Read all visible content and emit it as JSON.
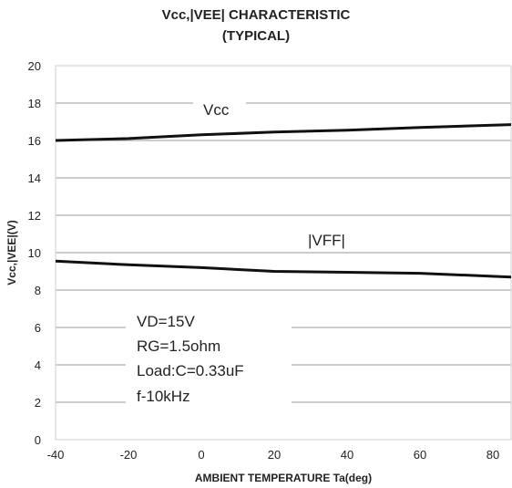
{
  "chart_data": {
    "type": "line",
    "title_line1": "Vcc,|VEE| CHARACTERISTIC",
    "title_line2": "(TYPICAL)",
    "xlabel": "AMBIENT TEMPERATURE Ta(deg)",
    "ylabel": "Vcc,|VEE|(V)",
    "xlim": [
      -40,
      85
    ],
    "ylim": [
      0,
      20
    ],
    "x_ticks": [
      -40,
      -20,
      0,
      20,
      40,
      60,
      80
    ],
    "y_ticks": [
      0,
      2,
      4,
      6,
      8,
      10,
      12,
      14,
      16,
      18,
      20
    ],
    "grid": "horizontal",
    "series": [
      {
        "name": "Vcc",
        "x": [
          -40,
          -20,
          0,
          20,
          40,
          60,
          85
        ],
        "y": [
          16.0,
          16.1,
          16.3,
          16.45,
          16.55,
          16.7,
          16.85
        ]
      },
      {
        "name": "|VFF|",
        "x": [
          -40,
          -20,
          0,
          20,
          40,
          60,
          85
        ],
        "y": [
          9.55,
          9.35,
          9.2,
          9.0,
          8.95,
          8.9,
          8.7
        ]
      }
    ],
    "annotations": {
      "vcc_label": "Vcc",
      "vee_label": "|VFF|",
      "conditions": [
        "VD=15V",
        "RG=1.5ohm",
        "Load:C=0.33uF",
        "f-10kHz"
      ]
    }
  }
}
